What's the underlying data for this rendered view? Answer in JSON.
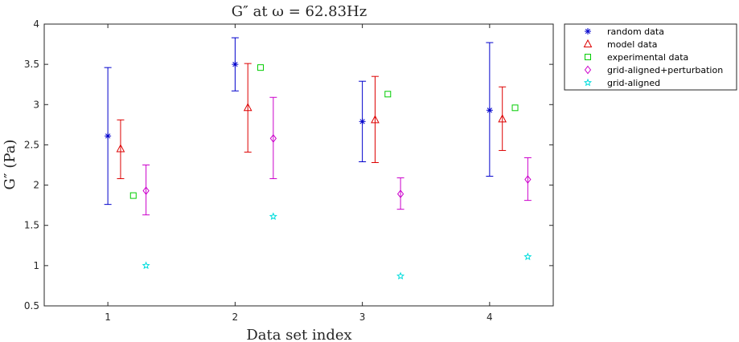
{
  "chart_data": {
    "type": "scatter",
    "title": "G″ at ω = 62.83Hz",
    "xlabel": "Data set index",
    "ylabel": "G″ (Pa)",
    "xlim": [
      0.5,
      4.5
    ],
    "ylim": [
      0.5,
      4
    ],
    "x_ticks": [
      "1",
      "2",
      "3",
      "4"
    ],
    "y_ticks": [
      "0.5",
      "1",
      "1.5",
      "2",
      "2.5",
      "3",
      "3.5",
      "4"
    ],
    "grid": false,
    "legend_position": "outside-top-right",
    "series": [
      {
        "name": "random data",
        "marker": "asterisk",
        "color": "#0000cc",
        "errorbar": true,
        "points": [
          {
            "x": 1.0,
            "y": 2.61,
            "low": 1.76,
            "high": 3.46
          },
          {
            "x": 2.0,
            "y": 3.5,
            "low": 3.17,
            "high": 3.83
          },
          {
            "x": 3.0,
            "y": 2.79,
            "low": 2.29,
            "high": 3.29
          },
          {
            "x": 4.0,
            "y": 2.93,
            "low": 2.11,
            "high": 3.77
          }
        ]
      },
      {
        "name": "model data",
        "marker": "triangle",
        "color": "#dd0000",
        "errorbar": true,
        "points": [
          {
            "x": 1.1,
            "y": 2.45,
            "low": 2.08,
            "high": 2.81
          },
          {
            "x": 2.1,
            "y": 2.96,
            "low": 2.41,
            "high": 3.51
          },
          {
            "x": 3.1,
            "y": 2.81,
            "low": 2.28,
            "high": 3.35
          },
          {
            "x": 4.1,
            "y": 2.82,
            "low": 2.43,
            "high": 3.22
          }
        ]
      },
      {
        "name": "experimental data",
        "marker": "square",
        "color": "#00cc00",
        "errorbar": false,
        "points": [
          {
            "x": 1.2,
            "y": 1.87
          },
          {
            "x": 2.2,
            "y": 3.46
          },
          {
            "x": 3.2,
            "y": 3.13
          },
          {
            "x": 4.2,
            "y": 2.96
          }
        ]
      },
      {
        "name": "grid-aligned+perturbation",
        "marker": "diamond",
        "color": "#cc00cc",
        "errorbar": true,
        "points": [
          {
            "x": 1.3,
            "y": 1.93,
            "low": 1.63,
            "high": 2.25
          },
          {
            "x": 2.3,
            "y": 2.58,
            "low": 2.08,
            "high": 3.09
          },
          {
            "x": 3.3,
            "y": 1.89,
            "low": 1.7,
            "high": 2.09
          },
          {
            "x": 4.3,
            "y": 2.07,
            "low": 1.81,
            "high": 2.34
          }
        ]
      },
      {
        "name": "grid-aligned",
        "marker": "pentagram",
        "color": "#00dddd",
        "errorbar": false,
        "points": [
          {
            "x": 1.3,
            "y": 1.0
          },
          {
            "x": 2.3,
            "y": 1.61
          },
          {
            "x": 3.3,
            "y": 0.87
          },
          {
            "x": 4.3,
            "y": 1.11
          }
        ]
      }
    ]
  }
}
